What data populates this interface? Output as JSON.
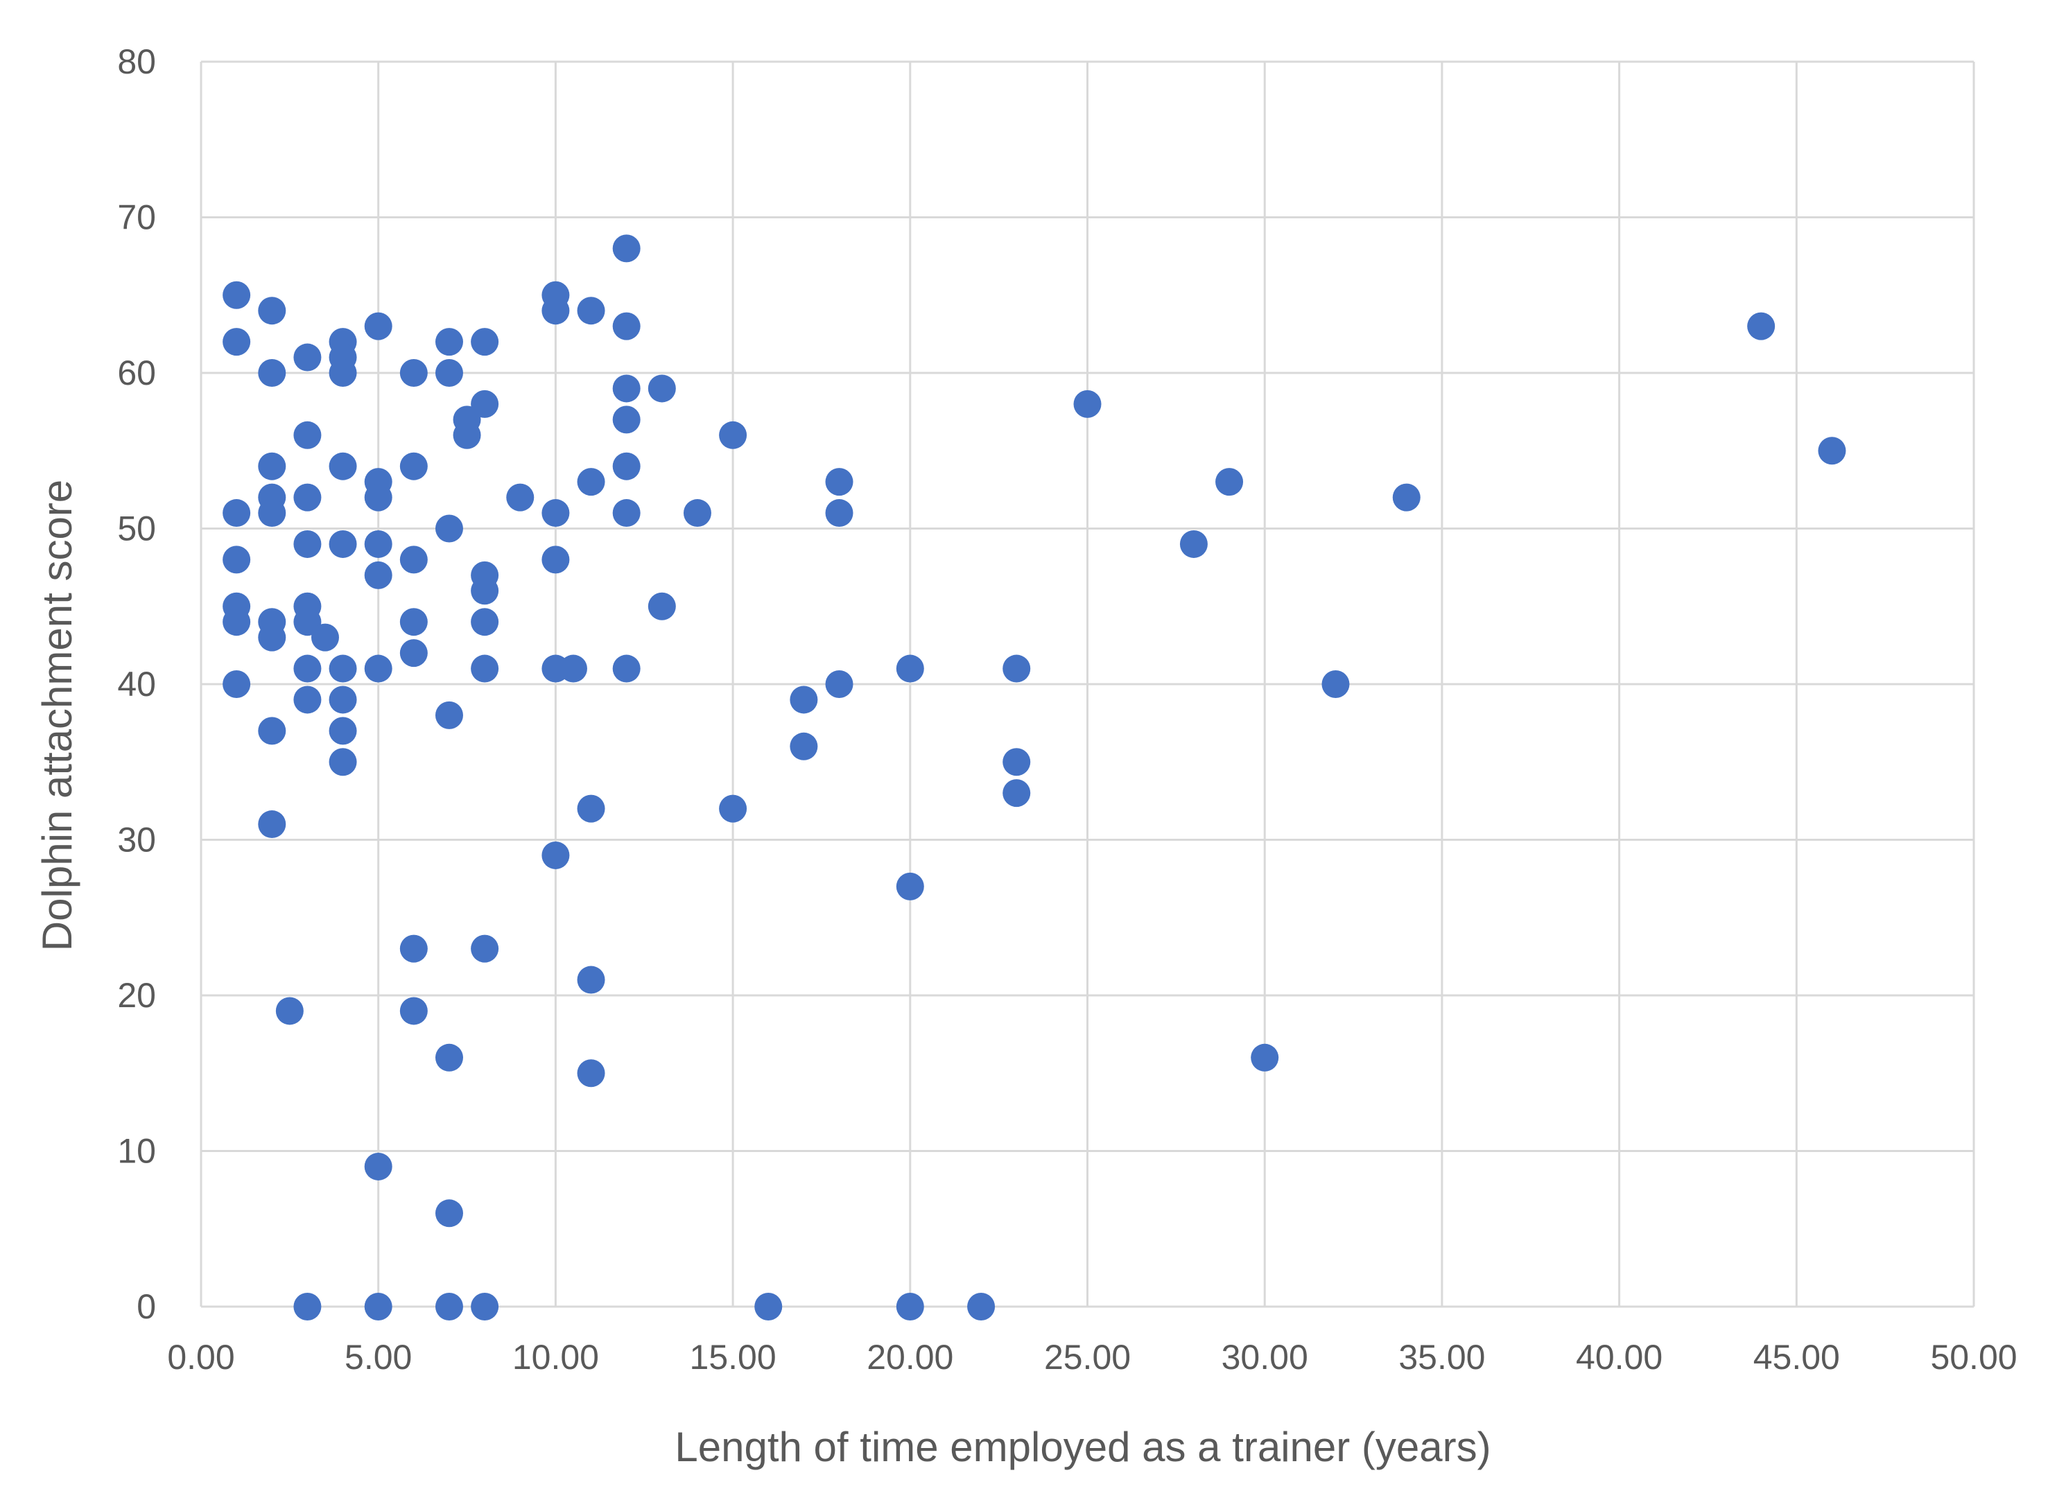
{
  "chart_data": {
    "type": "scatter",
    "title": "",
    "xlabel": "Length of time employed as a trainer (years)",
    "ylabel": "Dolphin attachment score",
    "xlim": [
      0,
      50
    ],
    "ylim": [
      0,
      80
    ],
    "x_ticks": [
      "0.00",
      "5.00",
      "10.00",
      "15.00",
      "20.00",
      "25.00",
      "30.00",
      "35.00",
      "40.00",
      "45.00",
      "50.00"
    ],
    "y_ticks": [
      "0",
      "10",
      "20",
      "30",
      "40",
      "50",
      "60",
      "70",
      "80"
    ],
    "grid": true,
    "legend": "none",
    "marker_color": "#4472c4",
    "grid_color": "#d9d9d9",
    "text_color": "#595959",
    "series": [
      {
        "points": [
          [
            1,
            65
          ],
          [
            1,
            62
          ],
          [
            1,
            51
          ],
          [
            1,
            48
          ],
          [
            1,
            45
          ],
          [
            1,
            44
          ],
          [
            1,
            40
          ],
          [
            2,
            64
          ],
          [
            2,
            60
          ],
          [
            2,
            54
          ],
          [
            2,
            52
          ],
          [
            2,
            51
          ],
          [
            2,
            44
          ],
          [
            2,
            43
          ],
          [
            2,
            37
          ],
          [
            2,
            31
          ],
          [
            2.5,
            19
          ],
          [
            3,
            61
          ],
          [
            3,
            56
          ],
          [
            3,
            52
          ],
          [
            3,
            49
          ],
          [
            3,
            45
          ],
          [
            3,
            44
          ],
          [
            3,
            41
          ],
          [
            3,
            39
          ],
          [
            3,
            0
          ],
          [
            3.5,
            43
          ],
          [
            4,
            62
          ],
          [
            4,
            61
          ],
          [
            4,
            60
          ],
          [
            4,
            54
          ],
          [
            4,
            49
          ],
          [
            4,
            41
          ],
          [
            4,
            39
          ],
          [
            4,
            37
          ],
          [
            4,
            35
          ],
          [
            5,
            63
          ],
          [
            5,
            53
          ],
          [
            5,
            52
          ],
          [
            5,
            49
          ],
          [
            5,
            47
          ],
          [
            5,
            41
          ],
          [
            5,
            9
          ],
          [
            5,
            0
          ],
          [
            6,
            60
          ],
          [
            6,
            54
          ],
          [
            6,
            48
          ],
          [
            6,
            44
          ],
          [
            6,
            42
          ],
          [
            6,
            23
          ],
          [
            6,
            19
          ],
          [
            7,
            62
          ],
          [
            7,
            60
          ],
          [
            7,
            50
          ],
          [
            7,
            38
          ],
          [
            7,
            16
          ],
          [
            7,
            6
          ],
          [
            7,
            0
          ],
          [
            7.5,
            57
          ],
          [
            7.5,
            56
          ],
          [
            8,
            62
          ],
          [
            8,
            58
          ],
          [
            8,
            47
          ],
          [
            8,
            46
          ],
          [
            8,
            44
          ],
          [
            8,
            41
          ],
          [
            8,
            23
          ],
          [
            8,
            0
          ],
          [
            9,
            52
          ],
          [
            10,
            65
          ],
          [
            10,
            64
          ],
          [
            10,
            51
          ],
          [
            10,
            48
          ],
          [
            10,
            41
          ],
          [
            10,
            29
          ],
          [
            10.5,
            41
          ],
          [
            11,
            64
          ],
          [
            11,
            53
          ],
          [
            11,
            32
          ],
          [
            11,
            21
          ],
          [
            11,
            15
          ],
          [
            12,
            68
          ],
          [
            12,
            63
          ],
          [
            12,
            59
          ],
          [
            12,
            57
          ],
          [
            12,
            54
          ],
          [
            12,
            51
          ],
          [
            12,
            41
          ],
          [
            13,
            59
          ],
          [
            13,
            45
          ],
          [
            14,
            51
          ],
          [
            15,
            56
          ],
          [
            15,
            32
          ],
          [
            16,
            0
          ],
          [
            17,
            39
          ],
          [
            17,
            36
          ],
          [
            18,
            53
          ],
          [
            18,
            51
          ],
          [
            18,
            40
          ],
          [
            20,
            41
          ],
          [
            20,
            27
          ],
          [
            20,
            0
          ],
          [
            22,
            0
          ],
          [
            23,
            41
          ],
          [
            23,
            35
          ],
          [
            23,
            33
          ],
          [
            25,
            58
          ],
          [
            28,
            49
          ],
          [
            29,
            53
          ],
          [
            30,
            16
          ],
          [
            32,
            40
          ],
          [
            34,
            52
          ],
          [
            44,
            63
          ],
          [
            46,
            55
          ]
        ]
      }
    ]
  }
}
